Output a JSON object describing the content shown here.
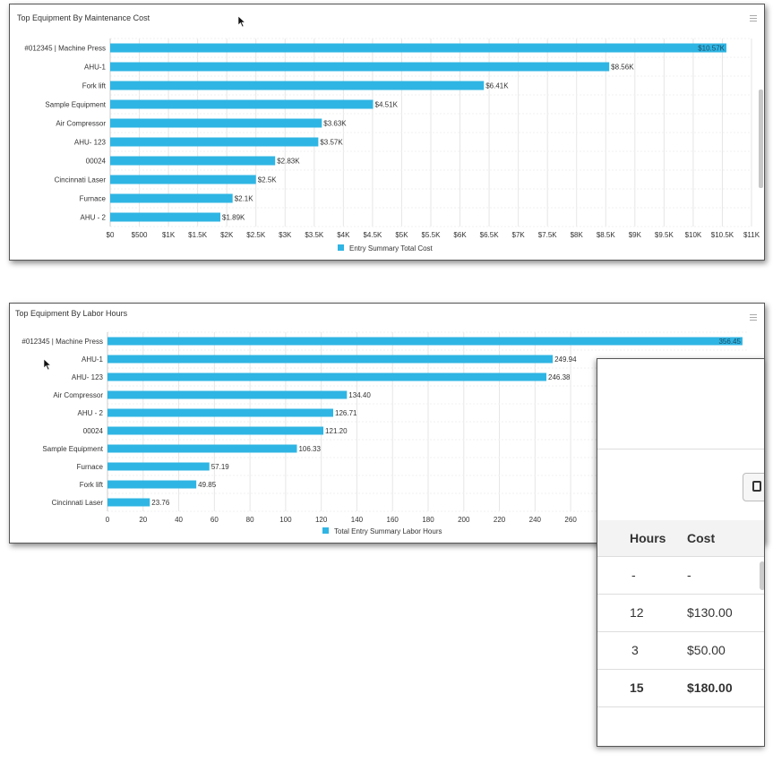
{
  "maintenance_panel": {
    "title": "Top Equipment By Maintenance Cost",
    "legend": "Entry Summary Total Cost"
  },
  "labor_panel": {
    "title": "Top Equipment By Labor Hours",
    "legend": "Total Entry Summary Labor Hours"
  },
  "colors": {
    "bar": "#2fb5e3",
    "grid": "#e6e6e6",
    "legend": "#2fb5e3"
  },
  "chart_data": [
    {
      "type": "bar",
      "orientation": "horizontal",
      "title": "Top Equipment By Maintenance Cost",
      "categories": [
        "#012345 | Machine Press",
        "AHU-1",
        "Fork lift",
        "Sample Equipment",
        "Air Compressor",
        "AHU- 123",
        "00024",
        "Cincinnati Laser",
        "Furnace",
        "AHU - 2"
      ],
      "series": [
        {
          "name": "Entry Summary Total Cost",
          "values": [
            10570,
            8560,
            6410,
            4510,
            3630,
            3570,
            2830,
            2500,
            2100,
            1890
          ],
          "labels": [
            "$10.57K",
            "$8.56K",
            "$6.41K",
            "$4.51K",
            "$3.63K",
            "$3.57K",
            "$2.83K",
            "$2.5K",
            "$2.1K",
            "$1.89K"
          ]
        }
      ],
      "xlim": [
        0,
        11000
      ],
      "ticks": [
        0,
        500,
        1000,
        1500,
        2000,
        2500,
        3000,
        3500,
        4000,
        4500,
        5000,
        5500,
        6000,
        6500,
        7000,
        7500,
        8000,
        8500,
        9000,
        9500,
        10000,
        10500,
        11000
      ],
      "tick_labels": [
        "$0",
        "$500",
        "$1K",
        "$1.5K",
        "$2K",
        "$2.5K",
        "$3K",
        "$3.5K",
        "$4K",
        "$4.5K",
        "$5K",
        "$5.5K",
        "$6K",
        "$6.5K",
        "$7K",
        "$7.5K",
        "$8K",
        "$8.5K",
        "$9K",
        "$9.5K",
        "$10K",
        "$10.5K",
        "$11K"
      ],
      "grid": true,
      "legend_position": "bottom-center"
    },
    {
      "type": "bar",
      "orientation": "horizontal",
      "title": "Top Equipment By Labor Hours",
      "categories": [
        "#012345 | Machine Press",
        "AHU-1",
        "AHU- 123",
        "Air Compressor",
        "AHU - 2",
        "00024",
        "Sample Equipment",
        "Furnace",
        "Fork lift",
        "Cincinnati Laser"
      ],
      "series": [
        {
          "name": "Total Entry Summary Labor Hours",
          "values": [
            356.45,
            249.94,
            246.38,
            134.4,
            126.71,
            121.2,
            106.33,
            57.19,
            49.85,
            23.76
          ],
          "labels": [
            "356.45",
            "249.94",
            "246.38",
            "134.40",
            "126.71",
            "121.20",
            "106.33",
            "57.19",
            "49.85",
            "23.76"
          ]
        }
      ],
      "xlim": [
        0,
        360
      ],
      "ticks": [
        0,
        20,
        40,
        60,
        80,
        100,
        120,
        140,
        160,
        180,
        200,
        220,
        240,
        260
      ],
      "tick_labels": [
        "0",
        "20",
        "40",
        "60",
        "80",
        "100",
        "120",
        "140",
        "160",
        "180",
        "200",
        "220",
        "240",
        "260"
      ],
      "grid": true,
      "legend_position": "bottom-center"
    }
  ],
  "table": {
    "headers": {
      "hours": "Hours",
      "cost": "Cost"
    },
    "rows": [
      {
        "hours": "-",
        "cost": "-"
      },
      {
        "hours": "12",
        "cost": "$130.00"
      },
      {
        "hours": "3",
        "cost": "$50.00"
      }
    ],
    "total": {
      "hours": "15",
      "cost": "$180.00"
    }
  }
}
